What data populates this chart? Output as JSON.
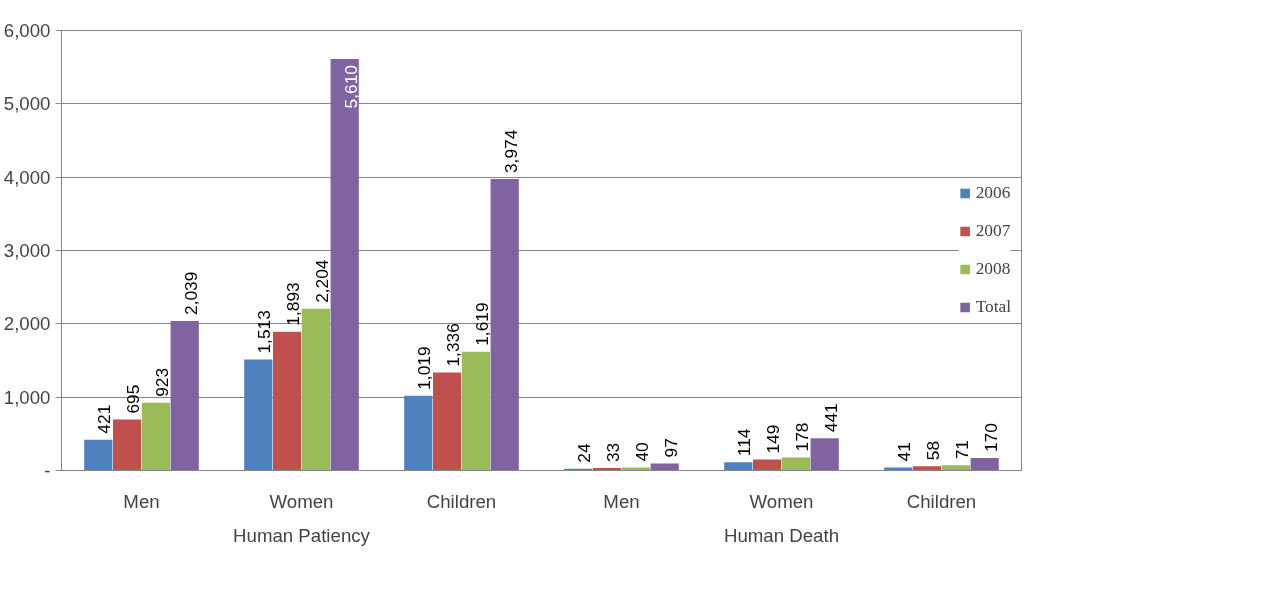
{
  "chart_data": {
    "type": "bar",
    "categories": [
      "Men",
      "Women",
      "Children",
      "Men",
      "Women",
      "Children"
    ],
    "annotations": [
      "Human Patiency",
      "Human Death"
    ],
    "series": [
      {
        "name": "2006",
        "color": "#4f81bd",
        "values": [
          421,
          1513,
          1019,
          24,
          114,
          41
        ],
        "value_labels": [
          "421",
          "1,513",
          "1,019",
          "24",
          "114",
          "41"
        ]
      },
      {
        "name": "2007",
        "color": "#c0504d",
        "values": [
          695,
          1893,
          1336,
          33,
          149,
          58
        ],
        "value_labels": [
          "695",
          "1,893",
          "1,336",
          "33",
          "149",
          "58"
        ]
      },
      {
        "name": "2008",
        "color": "#9bbb59",
        "values": [
          923,
          2204,
          1619,
          40,
          178,
          71
        ],
        "value_labels": [
          "923",
          "2,204",
          "1,619",
          "40",
          "178",
          "71"
        ]
      },
      {
        "name": "Total",
        "color": "#8064a2",
        "values": [
          2039,
          5610,
          3974,
          97,
          441,
          170
        ],
        "value_labels": [
          "2,039",
          "5,610",
          "3,974",
          "97",
          "441",
          "170"
        ]
      }
    ],
    "ylim": [
      0,
      6000
    ],
    "yticks": [
      {
        "value": 0,
        "label": "-"
      },
      {
        "value": 1000,
        "label": "1,000"
      },
      {
        "value": 2000,
        "label": "2,000"
      },
      {
        "value": 3000,
        "label": "3,000"
      },
      {
        "value": 4000,
        "label": "4,000"
      },
      {
        "value": 5000,
        "label": "5,000"
      },
      {
        "value": 6000,
        "label": "6,000"
      }
    ],
    "grid": "y",
    "legend": "right"
  }
}
